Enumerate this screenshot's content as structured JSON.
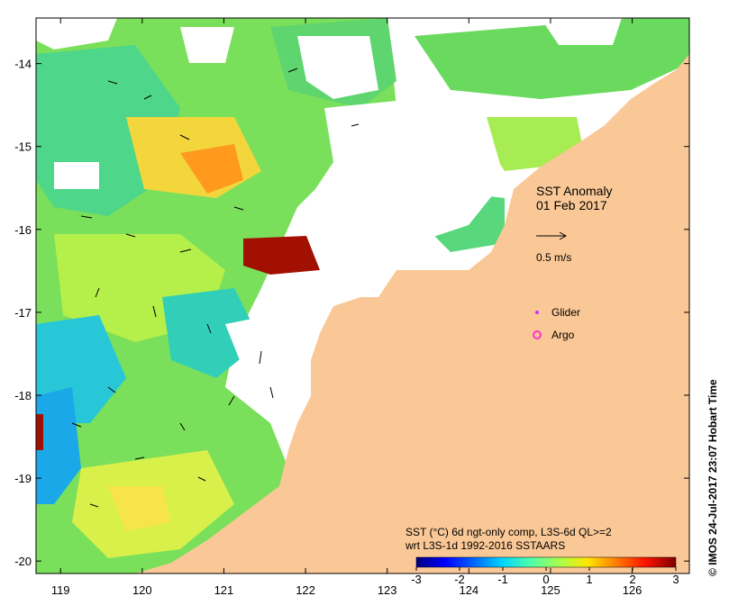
{
  "map": {
    "title": "SST Anomaly",
    "date": "01 Feb 2017",
    "vector_scale_label": "0.5 m/s",
    "legend": {
      "glider_label": "Glider",
      "argo_label": "Argo",
      "glider_color": "#cc33ff",
      "argo_color": "#ff33cc"
    },
    "colorbar": {
      "caption_line1": "SST (°C) 6d ngt-only comp, L3S-6d QL>=2",
      "caption_line2": "wrt L3S-1d 1992-2016 SSTAARS",
      "ticks": [
        "-3",
        "-2",
        "-1",
        "0",
        "1",
        "2",
        "3"
      ],
      "range": [
        -3,
        3
      ],
      "colors": [
        "#00007f",
        "#0000ff",
        "#0063ff",
        "#00d4ff",
        "#4effa9",
        "#a9ff4e",
        "#ffe600",
        "#ff7d00",
        "#ff1400",
        "#7f0000"
      ]
    },
    "axes": {
      "x_ticks": [
        "119",
        "120",
        "121",
        "122",
        "123",
        "124",
        "125",
        "126"
      ],
      "y_ticks": [
        "-14",
        "-15",
        "-16",
        "-17",
        "-18",
        "-19",
        "-20"
      ],
      "lon_range": [
        118.7,
        126.7
      ],
      "lat_range": [
        -20.15,
        -13.45
      ]
    },
    "land_color": "#fac896",
    "credit": "© IMOS 24-Jul-2017 23:07 Hobart Time"
  }
}
